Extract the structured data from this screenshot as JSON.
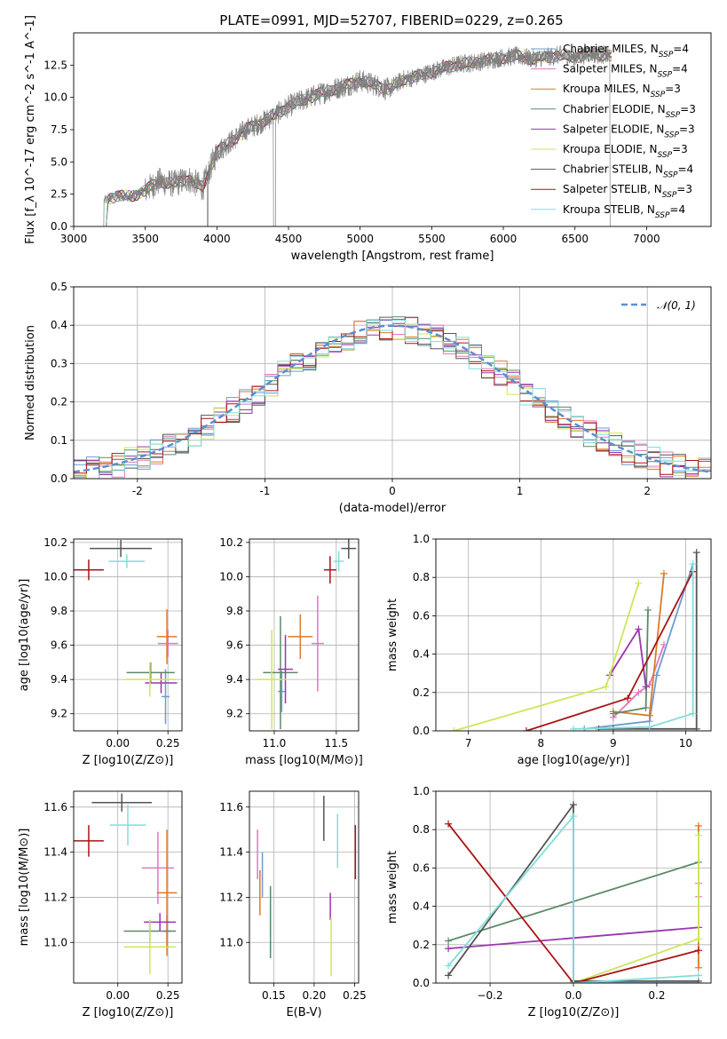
{
  "figure": {
    "title": "PLATE=0991, MJD=52707, FIBERID=0229, z=0.265"
  },
  "models": [
    {
      "name": "Chabrier MILES",
      "nssp": 4,
      "color": "#6b9bd2"
    },
    {
      "name": "Salpeter MILES",
      "nssp": 4,
      "color": "#e277c1"
    },
    {
      "name": "Kroupa MILES",
      "nssp": 3,
      "color": "#dd7a2a"
    },
    {
      "name": "Chabrier ELODIE",
      "nssp": 3,
      "color": "#5a8a68"
    },
    {
      "name": "Salpeter ELODIE",
      "nssp": 3,
      "color": "#9a35b0"
    },
    {
      "name": "Kroupa ELODIE",
      "nssp": 3,
      "color": "#cde65a"
    },
    {
      "name": "Chabrier STELIB",
      "nssp": 4,
      "color": "#555555"
    },
    {
      "name": "Salpeter STELIB",
      "nssp": 3,
      "color": "#aa1515"
    },
    {
      "name": "Kroupa STELIB",
      "nssp": 4,
      "color": "#7fdedd"
    }
  ],
  "chart_data": [
    {
      "id": "spectrum",
      "type": "line",
      "xlabel": "wavelength [Angstrom, rest frame]",
      "ylabel": "Flux [f_λ 10^-17 erg cm^-2 s^-1 A^-1]",
      "xlim": [
        3000,
        7450
      ],
      "ylim": [
        0,
        15
      ],
      "xticks": [
        3000,
        3500,
        4000,
        4500,
        5000,
        5500,
        6000,
        6500,
        7000
      ],
      "yticks": [
        "0.0",
        "2.5",
        "5.0",
        "7.5",
        "10.0",
        "12.5"
      ],
      "legend": "top-right",
      "data_line_color": "#808080",
      "x": [
        3215,
        3300,
        3400,
        3500,
        3600,
        3700,
        3800,
        3900,
        4000,
        4100,
        4200,
        4300,
        4400,
        4500,
        4600,
        4700,
        4800,
        4900,
        5000,
        5100,
        5200,
        5300,
        5400,
        5500,
        5600,
        5700,
        5800,
        5900,
        6000,
        6100,
        6200,
        6300,
        6400,
        6500,
        6600,
        6700,
        6760
      ],
      "y": [
        2.0,
        2.4,
        2.3,
        2.8,
        3.5,
        3.3,
        3.7,
        3.0,
        5.8,
        6.6,
        7.5,
        8.0,
        8.6,
        9.3,
        9.8,
        10.2,
        10.6,
        10.9,
        11.3,
        11.0,
        10.6,
        11.4,
        11.6,
        12.0,
        12.3,
        12.6,
        12.7,
        12.9,
        13.1,
        13.2,
        13.0,
        13.1,
        13.3,
        13.1,
        13.4,
        13.3,
        13.2
      ]
    },
    {
      "id": "residuals",
      "type": "line",
      "xlabel": "(data-model)/error",
      "ylabel": "Normed distribution",
      "xlim": [
        -2.5,
        2.5
      ],
      "ylim": [
        0,
        0.5
      ],
      "xticks": [
        -2,
        -1,
        0,
        1,
        2
      ],
      "yticks": [
        "0.0",
        "0.1",
        "0.2",
        "0.3",
        "0.4",
        "0.5"
      ],
      "legend": "top-right",
      "reference": {
        "name": "𝒩(0, 1)",
        "color": "#5a8ed6",
        "style": "dashed"
      },
      "hist_bin_width": 0.1,
      "hist_bin_start": -2.5
    },
    {
      "id": "age_vs_Z",
      "type": "scatter",
      "xlabel": "Z [log10(Z/Z⊙)]",
      "ylabel": "age [log10(age/yr)]",
      "xlim": [
        -0.22,
        0.32
      ],
      "ylim": [
        9.1,
        10.22
      ],
      "xticks": [
        "0.00",
        "0.25"
      ],
      "yticks": [
        "9.2",
        "9.4",
        "9.6",
        "9.8",
        "10.0",
        "10.2"
      ],
      "points": [
        {
          "m": 0,
          "x": 0.238,
          "y": 9.3,
          "xerr": 0.02,
          "yerr": 0.16
        },
        {
          "m": 1,
          "x": 0.25,
          "y": 9.61,
          "xerr": 0.05,
          "yerr": 0.08
        },
        {
          "m": 2,
          "x": 0.245,
          "y": 9.65,
          "xerr": 0.05,
          "yerr": 0.16
        },
        {
          "m": 3,
          "x": 0.164,
          "y": 9.44,
          "xerr": 0.12,
          "yerr": 0.06
        },
        {
          "m": 4,
          "x": 0.216,
          "y": 9.38,
          "xerr": 0.08,
          "yerr": 0.06
        },
        {
          "m": 5,
          "x": 0.16,
          "y": 9.4,
          "xerr": 0.13,
          "yerr": 0.1
        },
        {
          "m": 6,
          "x": 0.015,
          "y": 10.165,
          "xerr": 0.155,
          "yerr": 0.05
        },
        {
          "m": 7,
          "x": -0.145,
          "y": 10.04,
          "xerr": 0.075,
          "yerr": 0.06
        },
        {
          "m": 8,
          "x": 0.045,
          "y": 10.09,
          "xerr": 0.09,
          "yerr": 0.04
        }
      ]
    },
    {
      "id": "age_vs_mass",
      "type": "scatter",
      "xlabel": "mass [log10(M/M⊙)]",
      "ylabel": "",
      "xlim": [
        10.8,
        11.68
      ],
      "ylim": [
        9.1,
        10.22
      ],
      "xticks": [
        "11.0",
        "11.5"
      ],
      "yticks": [
        "9.2",
        "9.4",
        "9.6",
        "9.8",
        "10.0",
        "10.2"
      ],
      "points": [
        {
          "m": 0,
          "x": 11.06,
          "y": 9.33,
          "xerr": 0.03,
          "yerr": 0.12
        },
        {
          "m": 1,
          "x": 11.35,
          "y": 9.61,
          "xerr": 0.05,
          "yerr": 0.28
        },
        {
          "m": 2,
          "x": 11.21,
          "y": 9.65,
          "xerr": 0.1,
          "yerr": 0.13
        },
        {
          "m": 3,
          "x": 11.05,
          "y": 9.44,
          "xerr": 0.14,
          "yerr": 0.33
        },
        {
          "m": 4,
          "x": 11.09,
          "y": 9.46,
          "xerr": 0.06,
          "yerr": 0.2
        },
        {
          "m": 5,
          "x": 10.98,
          "y": 9.4,
          "xerr": 0.12,
          "yerr": 0.29
        },
        {
          "m": 6,
          "x": 11.6,
          "y": 10.165,
          "xerr": 0.06,
          "yerr": 0.06
        },
        {
          "m": 7,
          "x": 11.45,
          "y": 10.04,
          "xerr": 0.05,
          "yerr": 0.08
        },
        {
          "m": 8,
          "x": 11.52,
          "y": 10.09,
          "xerr": 0.04,
          "yerr": 0.06
        }
      ]
    },
    {
      "id": "weight_vs_age",
      "type": "line",
      "xlabel": "age  [log10(age/yr)]",
      "ylabel": "mass weight",
      "xlim": [
        6.55,
        10.35
      ],
      "ylim": [
        0,
        1.0
      ],
      "xticks": [
        "7",
        "8",
        "9",
        "10"
      ],
      "yticks": [
        "0.0",
        "0.2",
        "0.4",
        "0.6",
        "0.8",
        "1.0"
      ],
      "series": [
        {
          "m": 0,
          "x": [
            8.6,
            9.5,
            9.6,
            10.1
          ],
          "y": [
            0.01,
            0.05,
            0.29,
            0.87
          ]
        },
        {
          "m": 1,
          "x": [
            9.0,
            9.35,
            9.5,
            9.7
          ],
          "y": [
            0.07,
            0.2,
            0.24,
            0.45
          ]
        },
        {
          "m": 2,
          "x": [
            9.0,
            9.5,
            9.7
          ],
          "y": [
            0.1,
            0.08,
            0.82
          ]
        },
        {
          "m": 3,
          "x": [
            9.0,
            9.45,
            9.48
          ],
          "y": [
            0.09,
            0.12,
            0.63
          ]
        },
        {
          "m": 4,
          "x": [
            8.95,
            9.35,
            9.45
          ],
          "y": [
            0.29,
            0.53,
            0.23
          ]
        },
        {
          "m": 5,
          "x": [
            6.8,
            8.9,
            9.35
          ],
          "y": [
            0.0,
            0.23,
            0.77
          ]
        },
        {
          "m": 6,
          "x": [
            8.8,
            9.0,
            10.15,
            10.15
          ],
          "y": [
            0.01,
            0.01,
            0.01,
            0.93
          ]
        },
        {
          "m": 7,
          "x": [
            7.8,
            9.2,
            10.1
          ],
          "y": [
            0.0,
            0.17,
            0.83
          ]
        },
        {
          "m": 8,
          "x": [
            8.45,
            9.5,
            10.1,
            10.1
          ],
          "y": [
            0.01,
            0.02,
            0.09,
            0.87
          ]
        }
      ]
    },
    {
      "id": "mass_vs_Z",
      "type": "scatter",
      "xlabel": "Z [log10(Z/Z⊙)]",
      "ylabel": "mass [log10(M/M⊙)]",
      "xlim": [
        -0.22,
        0.32
      ],
      "ylim": [
        10.82,
        11.67
      ],
      "xticks": [
        "0.00",
        "0.25"
      ],
      "yticks": [
        "11.0",
        "11.2",
        "11.4",
        "11.6"
      ],
      "points": [
        {
          "m": 0,
          "x": 0.245,
          "y": 11.05,
          "xerr": 0.02,
          "yerr": 0.07
        },
        {
          "m": 1,
          "x": 0.2,
          "y": 11.33,
          "xerr": 0.08,
          "yerr": 0.16
        },
        {
          "m": 2,
          "x": 0.245,
          "y": 11.22,
          "xerr": 0.05,
          "yerr": 0.28
        },
        {
          "m": 3,
          "x": 0.16,
          "y": 11.05,
          "xerr": 0.13,
          "yerr": 0.05
        },
        {
          "m": 4,
          "x": 0.21,
          "y": 11.09,
          "xerr": 0.08,
          "yerr": 0.04
        },
        {
          "m": 5,
          "x": 0.16,
          "y": 10.98,
          "xerr": 0.13,
          "yerr": 0.12
        },
        {
          "m": 6,
          "x": 0.02,
          "y": 11.62,
          "xerr": 0.15,
          "yerr": 0.04
        },
        {
          "m": 7,
          "x": -0.145,
          "y": 11.45,
          "xerr": 0.075,
          "yerr": 0.07
        },
        {
          "m": 8,
          "x": 0.05,
          "y": 11.52,
          "xerr": 0.09,
          "yerr": 0.09
        }
      ]
    },
    {
      "id": "mass_vs_ebv",
      "type": "scatter",
      "xlabel": "E(B-V)",
      "ylabel": "",
      "xlim": [
        0.12,
        0.255
      ],
      "ylim": [
        10.82,
        11.67
      ],
      "xticks": [
        "0.15",
        "0.20",
        "0.25"
      ],
      "yticks": [
        "11.0",
        "11.2",
        "11.4",
        "11.6"
      ],
      "points": [
        {
          "m": 0,
          "x": 0.136,
          "y": 11.3,
          "xerr": 0,
          "yerr": 0.1
        },
        {
          "m": 1,
          "x": 0.13,
          "y": 11.39,
          "xerr": 0,
          "yerr": 0.11
        },
        {
          "m": 2,
          "x": 0.133,
          "y": 11.22,
          "xerr": 0,
          "yerr": 0.1
        },
        {
          "m": 3,
          "x": 0.146,
          "y": 11.09,
          "xerr": 0,
          "yerr": 0.16
        },
        {
          "m": 4,
          "x": 0.22,
          "y": 11.16,
          "xerr": 0,
          "yerr": 0.06
        },
        {
          "m": 5,
          "x": 0.221,
          "y": 10.98,
          "xerr": 0,
          "yerr": 0.13
        },
        {
          "m": 6,
          "x": 0.212,
          "y": 11.55,
          "xerr": 0,
          "yerr": 0.1
        },
        {
          "m": 7,
          "x": 0.251,
          "y": 11.4,
          "xerr": 0,
          "yerr": 0.12
        },
        {
          "m": 8,
          "x": 0.229,
          "y": 11.45,
          "xerr": 0,
          "yerr": 0.12
        }
      ]
    },
    {
      "id": "weight_vs_Z",
      "type": "line",
      "xlabel": "Z [log10(Z/Z⊙)]",
      "ylabel": "mass weight",
      "xlim": [
        -0.33,
        0.33
      ],
      "ylim": [
        0,
        1.0
      ],
      "xticks": [
        "−0.2",
        "0.0",
        "0.2"
      ],
      "yticks": [
        "0.0",
        "0.2",
        "0.4",
        "0.6",
        "0.8",
        "1.0"
      ],
      "series": [
        {
          "m": 0,
          "x": [
            0.0,
            0.3
          ],
          "y": [
            0.0,
            0.0
          ]
        },
        {
          "m": 1,
          "x": [
            0.3,
            0.3
          ],
          "y": [
            0.45,
            0.52
          ]
        },
        {
          "m": 2,
          "x": [
            0.3,
            0.3
          ],
          "y": [
            0.08,
            0.82
          ]
        },
        {
          "m": 3,
          "x": [
            -0.3,
            0.3
          ],
          "y": [
            0.22,
            0.63
          ]
        },
        {
          "m": 4,
          "x": [
            -0.3,
            0.3
          ],
          "y": [
            0.18,
            0.29
          ]
        },
        {
          "m": 5,
          "x": [
            0.0,
            0.3,
            0.3
          ],
          "y": [
            0.0,
            0.23,
            0.77
          ]
        },
        {
          "m": 6,
          "x": [
            -0.3,
            0.0,
            0.0,
            0.3
          ],
          "y": [
            0.04,
            0.93,
            0.01,
            0.01
          ]
        },
        {
          "m": 7,
          "x": [
            -0.3,
            0.0,
            0.3
          ],
          "y": [
            0.83,
            0.0,
            0.17
          ]
        },
        {
          "m": 8,
          "x": [
            -0.3,
            0.0,
            0.0,
            0.3
          ],
          "y": [
            0.09,
            0.87,
            0.0,
            0.04
          ]
        }
      ]
    }
  ]
}
